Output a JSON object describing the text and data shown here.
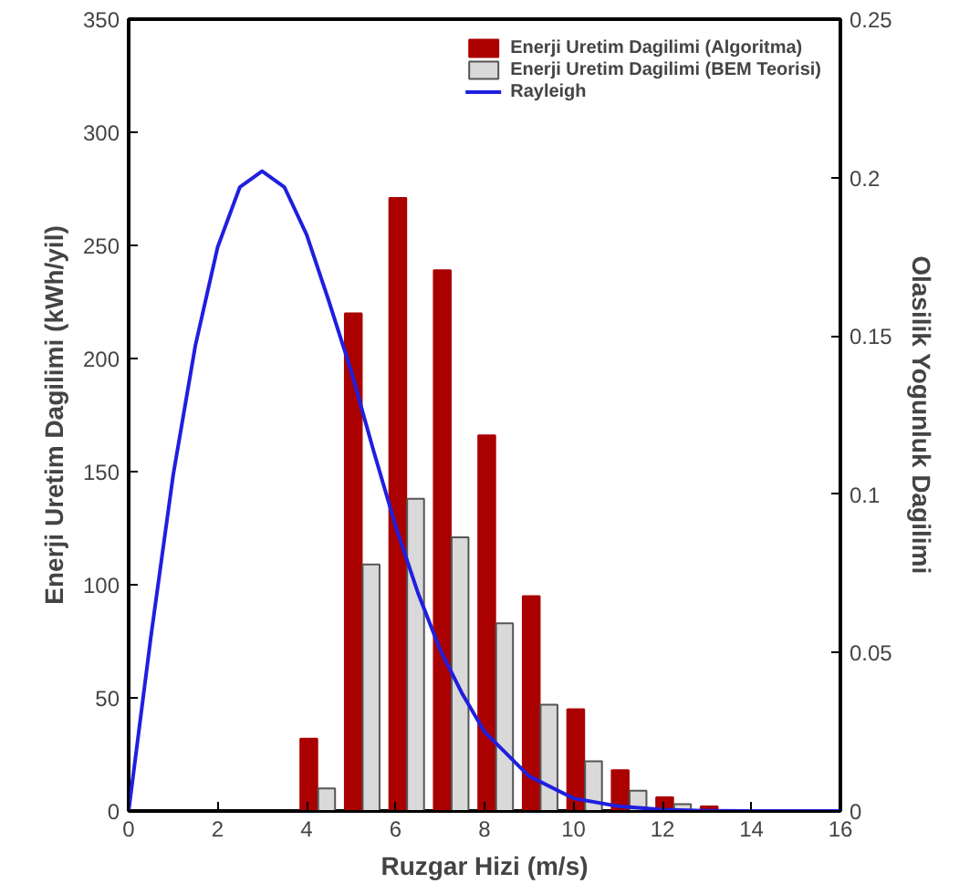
{
  "chart_data": {
    "type": "bar",
    "xlabel": "Ruzgar Hizi (m/s)",
    "ylabel": "Enerji Uretim Dagilimi (kWh/yil)",
    "y2label": "Olasilik Yogunluk Dagilimi",
    "x": [
      4,
      5,
      6,
      7,
      8,
      9,
      10,
      11,
      12,
      13
    ],
    "series": [
      {
        "name": "Enerji Uretim Dagilimi (Algoritma)",
        "color": "#aa0000",
        "values": [
          32,
          220,
          271,
          239,
          166,
          95,
          45,
          18,
          6,
          2
        ]
      },
      {
        "name": "Enerji Uretim Dagilimi (BEM Teorisi)",
        "color": "#d9d9d9",
        "values": [
          10,
          109,
          138,
          121,
          83,
          47,
          22,
          9,
          3,
          null
        ]
      },
      {
        "name": "Rayleigh",
        "type": "line",
        "axis": "y2",
        "color": "#1f1fe0",
        "x": [
          0,
          0.5,
          1,
          1.5,
          2,
          2.5,
          3,
          3.5,
          4,
          4.5,
          5,
          5.5,
          6,
          6.5,
          7,
          7.5,
          8,
          9,
          10,
          11,
          12,
          13,
          14,
          16
        ],
        "values": [
          0,
          0.055,
          0.106,
          0.147,
          0.178,
          0.197,
          0.202,
          0.197,
          0.182,
          0.161,
          0.139,
          0.114,
          0.09,
          0.069,
          0.051,
          0.037,
          0.025,
          0.011,
          0.004,
          0.0015,
          0.0004,
          0.0001,
          0,
          0
        ]
      }
    ],
    "xlim": [
      0,
      16
    ],
    "xticks": [
      0,
      2,
      4,
      6,
      8,
      10,
      12,
      14,
      16
    ],
    "ylim": [
      0,
      350
    ],
    "yticks": [
      0,
      50,
      100,
      150,
      200,
      250,
      300,
      350
    ],
    "y2lim": [
      0,
      0.25
    ],
    "y2ticks": [
      0,
      0.05,
      0.1,
      0.15,
      0.2,
      0.25
    ],
    "grid": false,
    "legend": "top right"
  }
}
